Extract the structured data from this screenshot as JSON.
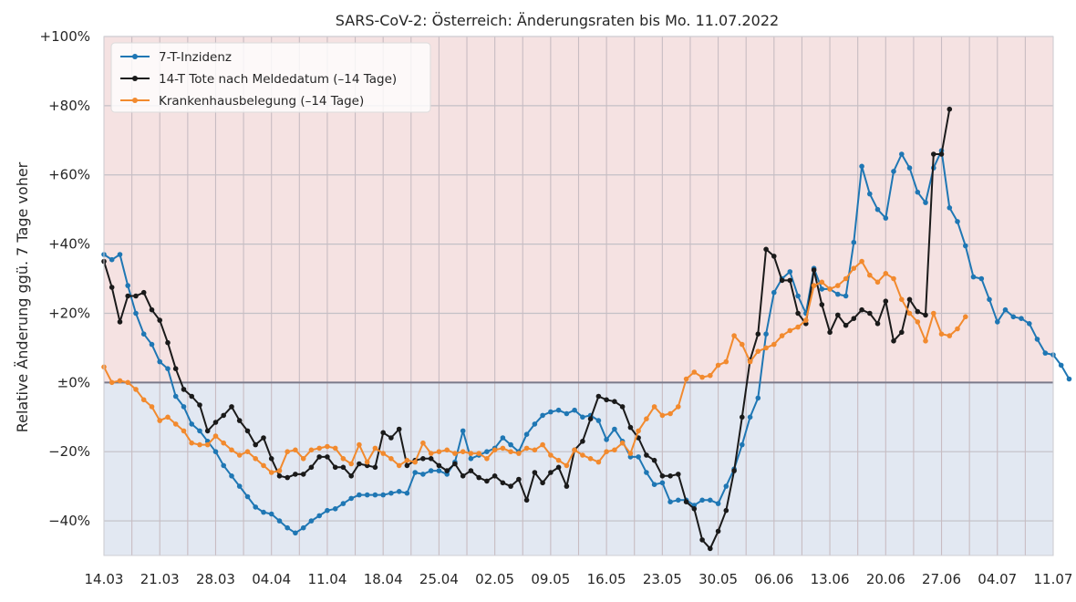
{
  "chart_data": {
    "type": "line",
    "title": "SARS-CoV-2: Österreich: Änderungsraten bis Mo. 11.07.2022",
    "ylabel": "Relative Änderung ggü. 7 Tage voher",
    "xlabel": "",
    "x_start": "2022-03-14",
    "x_end": "2022-07-11",
    "ylim": [
      -50,
      100
    ],
    "yticks": [
      -40,
      -20,
      0,
      20,
      40,
      60,
      80,
      100
    ],
    "ytick_labels": [
      "−40%",
      "−20%",
      "±0%",
      "+20%",
      "+40%",
      "+60%",
      "+80%",
      "+100%"
    ],
    "xticks": [
      "2022-03-14",
      "2022-03-21",
      "2022-03-28",
      "2022-04-04",
      "2022-04-11",
      "2022-04-18",
      "2022-04-25",
      "2022-05-02",
      "2022-05-09",
      "2022-05-16",
      "2022-05-23",
      "2022-05-30",
      "2022-06-06",
      "2022-06-13",
      "2022-06-20",
      "2022-06-27",
      "2022-07-04",
      "2022-07-11"
    ],
    "xtick_labels": [
      "14.03",
      "21.03",
      "28.03",
      "04.04",
      "11.04",
      "18.04",
      "25.04",
      "02.05",
      "09.05",
      "16.05",
      "23.05",
      "30.05",
      "06.06",
      "13.06",
      "20.06",
      "27.06",
      "04.07",
      "11.07"
    ],
    "grid": true,
    "legend_position": "top-left",
    "background_positive_color": "#f5e2e2",
    "background_negative_color": "#e2e8f2",
    "zero_line_color": "#7a7a8a",
    "series": [
      {
        "name": "7-T-Inzidenz",
        "color": "#1f77b4",
        "x_start": "2022-03-14",
        "values": [
          37,
          35.5,
          37,
          28,
          20,
          14,
          11,
          6,
          4,
          -4,
          -7,
          -12,
          -14,
          -17,
          -20,
          -24,
          -27,
          -30,
          -33,
          -36,
          -37.5,
          -38,
          -40,
          -42,
          -43.5,
          -42,
          -40,
          -38.5,
          -37,
          -36.5,
          -35,
          -33.5,
          -32.5,
          -32.5,
          -32.5,
          -32.5,
          -32,
          -31.5,
          -32,
          -26,
          -26.5,
          -25.5,
          -25.5,
          -26.5,
          -23,
          -14,
          -22,
          -21,
          -20,
          -19,
          -16,
          -18,
          -20,
          -15,
          -12,
          -9.5,
          -8.5,
          -8,
          -9,
          -8,
          -10,
          -9.5,
          -11,
          -16.5,
          -13.5,
          -17,
          -21.5,
          -21.5,
          -26,
          -29.5,
          -29,
          -34.5,
          -34,
          -34,
          -35.5,
          -34,
          -34,
          -35,
          -30,
          -25,
          -18,
          -10,
          -4.5,
          14,
          26,
          30,
          32,
          25,
          20,
          33,
          27,
          27,
          25.5,
          25,
          40.5,
          62.5,
          54.5,
          50,
          47.5,
          61,
          66,
          62,
          55,
          52,
          62,
          67,
          50.5,
          46.5,
          39.5,
          30.5,
          30,
          24,
          17.5,
          21,
          19,
          18.5,
          17,
          12.5,
          8.5,
          8,
          5,
          1
        ]
      },
      {
        "name": "14-T Tote nach Meldedatum (–14 Tage)",
        "color": "#1a1a1a",
        "x_start": "2022-03-14",
        "values": [
          35,
          27.5,
          17.5,
          25,
          25,
          26,
          21,
          18,
          11.5,
          4,
          -2,
          -4,
          -6.5,
          -14,
          -11.5,
          -9.5,
          -7,
          -11,
          -14,
          -18,
          -16,
          -22,
          -27,
          -27.5,
          -26.5,
          -26.5,
          -24.5,
          -21.5,
          -21.5,
          -24.5,
          -24.5,
          -27,
          -23.5,
          -24,
          -24.5,
          -14.5,
          -16,
          -13.5,
          -24,
          -22.5,
          -22,
          -22,
          -24,
          -25.5,
          -23.5,
          -27,
          -25.5,
          -27.5,
          -28.5,
          -27,
          -29,
          -30,
          -28,
          -34,
          -26,
          -29,
          -26,
          -24.5,
          -30,
          -19.5,
          -17,
          -10.5,
          -4,
          -5,
          -5.5,
          -7,
          -13,
          -16,
          -21,
          -22.5,
          -27,
          -27,
          -26.5,
          -34.5,
          -36.5,
          -45.5,
          -48,
          -43,
          -37,
          -25.5,
          -10,
          6.5,
          14,
          38.5,
          36.5,
          29.5,
          29.5,
          20,
          17,
          32.5,
          22.5,
          14.5,
          19.5,
          16.5,
          18.5,
          21,
          20,
          17,
          23.5,
          12,
          14.5,
          24,
          20.5,
          19.5,
          66,
          66,
          79
        ]
      },
      {
        "name": "Krankenhausbelegung (–14 Tage)",
        "color": "#f28a2e",
        "x_start": "2022-03-14",
        "values": [
          4.5,
          0,
          0.5,
          0,
          -2,
          -5,
          -7,
          -11,
          -10,
          -12,
          -14,
          -17.5,
          -18,
          -18,
          -15.5,
          -17.5,
          -19.5,
          -21,
          -20,
          -22,
          -24,
          -26,
          -25.5,
          -20,
          -19.5,
          -22,
          -19.5,
          -19,
          -18.5,
          -19,
          -22,
          -23.5,
          -18,
          -23,
          -19,
          -20.5,
          -22,
          -24,
          -22.5,
          -23,
          -17.5,
          -20.5,
          -20,
          -19.5,
          -20.5,
          -20,
          -20.5,
          -20.5,
          -22,
          -19.5,
          -19,
          -20,
          -20.5,
          -19,
          -19.5,
          -18,
          -21,
          -22.5,
          -24,
          -19.5,
          -21,
          -22,
          -23,
          -20,
          -19.5,
          -17.5,
          -20.5,
          -14,
          -10.5,
          -7,
          -9.5,
          -9,
          -7,
          1,
          3,
          1.5,
          2,
          5,
          6,
          13.5,
          11,
          6,
          9,
          10,
          11,
          13.5,
          15,
          16,
          18,
          28,
          29,
          27,
          28,
          30,
          33,
          35,
          31,
          29,
          31.5,
          30,
          24,
          20,
          17.5,
          12,
          20,
          14,
          13.5,
          15.5,
          19
        ]
      }
    ]
  }
}
